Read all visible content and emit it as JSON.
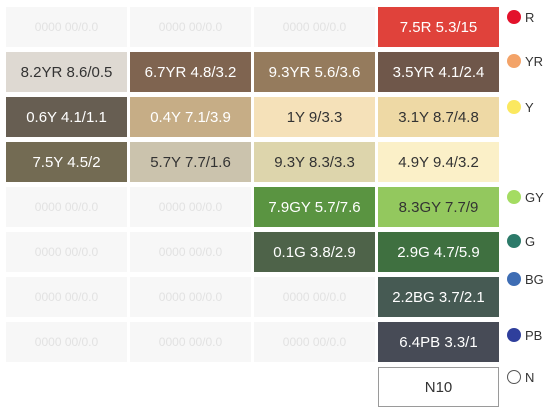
{
  "placeholder_text": "0000 00/0.0",
  "rows": [
    [
      {
        "label": "",
        "bg": "",
        "fg": ""
      },
      {
        "label": "",
        "bg": "",
        "fg": ""
      },
      {
        "label": "",
        "bg": "",
        "fg": ""
      },
      {
        "label": "7.5R 5.3/15",
        "bg": "#e0423b",
        "fg": "#ffffff"
      }
    ],
    [
      {
        "label": "8.2YR 8.6/0.5",
        "bg": "#ded9d2",
        "fg": "#333333"
      },
      {
        "label": "6.7YR 4.8/3.2",
        "bg": "#7f6450",
        "fg": "#ffffff"
      },
      {
        "label": "9.3YR 5.6/3.6",
        "bg": "#957b5d",
        "fg": "#ffffff"
      },
      {
        "label": "3.5YR 4.1/2.4",
        "bg": "#6f574a",
        "fg": "#ffffff"
      }
    ],
    [
      {
        "label": "0.6Y 4.1/1.1",
        "bg": "#675e52",
        "fg": "#ffffff"
      },
      {
        "label": "0.4Y 7.1/3.9",
        "bg": "#c6ad86",
        "fg": "#ffffff"
      },
      {
        "label": "1Y 9/3.3",
        "bg": "#f5e1b9",
        "fg": "#333333"
      },
      {
        "label": "3.1Y 8.7/4.8",
        "bg": "#eed9a5",
        "fg": "#333333"
      }
    ],
    [
      {
        "label": "7.5Y 4.5/2",
        "bg": "#736b53",
        "fg": "#ffffff"
      },
      {
        "label": "5.7Y 7.7/1.6",
        "bg": "#cbc3ad",
        "fg": "#333333"
      },
      {
        "label": "9.3Y 8.3/3.3",
        "bg": "#ddd5ac",
        "fg": "#333333"
      },
      {
        "label": "4.9Y 9.4/3.2",
        "bg": "#fbf0c8",
        "fg": "#333333"
      }
    ],
    [
      {
        "label": "",
        "bg": "",
        "fg": ""
      },
      {
        "label": "",
        "bg": "",
        "fg": ""
      },
      {
        "label": "7.9GY 5.7/7.6",
        "bg": "#5a9441",
        "fg": "#ffffff"
      },
      {
        "label": "8.3GY 7.7/9",
        "bg": "#93c85e",
        "fg": "#333333"
      }
    ],
    [
      {
        "label": "",
        "bg": "",
        "fg": ""
      },
      {
        "label": "",
        "bg": "",
        "fg": ""
      },
      {
        "label": "0.1G 3.8/2.9",
        "bg": "#4e6349",
        "fg": "#ffffff"
      },
      {
        "label": "2.9G 4.7/5.9",
        "bg": "#3f7040",
        "fg": "#ffffff"
      }
    ],
    [
      {
        "label": "",
        "bg": "",
        "fg": ""
      },
      {
        "label": "",
        "bg": "",
        "fg": ""
      },
      {
        "label": "",
        "bg": "",
        "fg": ""
      },
      {
        "label": "2.2BG 3.7/2.1",
        "bg": "#465a53",
        "fg": "#ffffff"
      }
    ],
    [
      {
        "label": "",
        "bg": "",
        "fg": ""
      },
      {
        "label": "",
        "bg": "",
        "fg": ""
      },
      {
        "label": "",
        "bg": "",
        "fg": ""
      },
      {
        "label": "6.4PB 3.3/1",
        "bg": "#474b56",
        "fg": "#ffffff"
      }
    ],
    [
      {
        "label": "",
        "bg": "",
        "fg": "",
        "blank": true
      },
      {
        "label": "",
        "bg": "",
        "fg": "",
        "blank": true
      },
      {
        "label": "",
        "bg": "",
        "fg": "",
        "blank": true
      },
      {
        "label": "N10",
        "bg": "#ffffff",
        "fg": "#333333",
        "border": true
      }
    ]
  ],
  "legend": [
    {
      "label": "R",
      "color": "#e3122b",
      "outline": false
    },
    {
      "label": "YR",
      "color": "#f3a368",
      "outline": false
    },
    {
      "label": "Y",
      "color": "#fbe85f",
      "outline": false
    },
    {
      "label": "GY",
      "color": "#a4dc62",
      "outline": false
    },
    {
      "label": "G",
      "color": "#2c7a69",
      "outline": false
    },
    {
      "label": "BG",
      "color": "#3e6db4",
      "outline": false
    },
    {
      "label": "PB",
      "color": "#2f3f9c",
      "outline": false
    },
    {
      "label": "N",
      "color": "#ffffff",
      "outline": true
    }
  ]
}
